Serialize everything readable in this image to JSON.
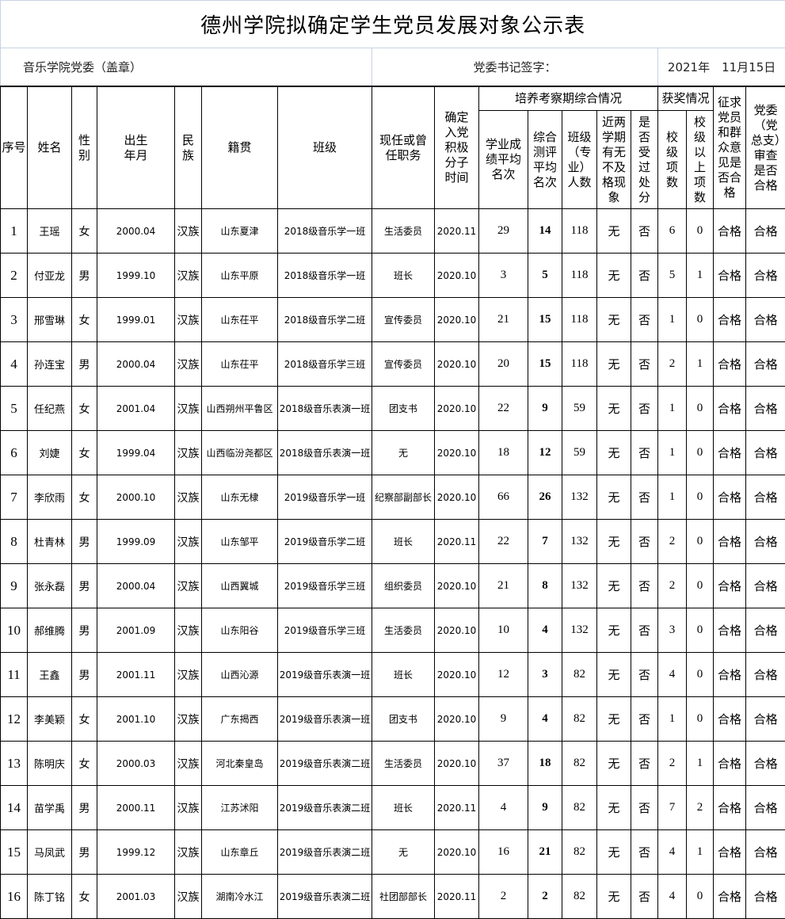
{
  "title": "德州学院拟确定学生党员发展对象公示表",
  "meta": {
    "committee": "音乐学院党委（盖章）",
    "signature_label": "党委书记签字：",
    "date": "2021年　11月15日"
  },
  "headers": {
    "seq": "序号",
    "name": "姓名",
    "gender": "性别",
    "birth": "出生年月",
    "ethnicity": "民族",
    "origin": "籍贯",
    "class": "班级",
    "position": "现任或曾任职务",
    "activist_date": "确定入党积极分子时间",
    "training_group": "培养考察期综合情况",
    "academic_rank": "学业成绩平均名次",
    "eval_rank": "综合测评平均名次",
    "class_size": "班级（专业）人数",
    "fail": "近两学期有无不及格现象",
    "punished": "是否受过处分",
    "award_group": "获奖情况",
    "school_awards": "校级项数",
    "above_awards": "校级以上项数",
    "opinion": "征求党员和群众意见是否合格",
    "review": "党委（党总支）审查是否合格"
  },
  "rows": [
    {
      "seq": "1",
      "name": "王瑶",
      "gender": "女",
      "birth": "2000.04",
      "eth": "汉族",
      "origin": "山东夏津",
      "class": "2018级音乐学一班",
      "position": "生活委员",
      "date": "2020.11",
      "acad": "29",
      "eval": "14",
      "size": "118",
      "fail": "无",
      "pun": "否",
      "school": "6",
      "above": "0",
      "op": "合格",
      "rev": "合格"
    },
    {
      "seq": "2",
      "name": "付亚龙",
      "gender": "男",
      "birth": "1999.10",
      "eth": "汉族",
      "origin": "山东平原",
      "class": "2018级音乐学一班",
      "position": "班长",
      "date": "2020.10",
      "acad": "3",
      "eval": "5",
      "size": "118",
      "fail": "无",
      "pun": "否",
      "school": "5",
      "above": "1",
      "op": "合格",
      "rev": "合格"
    },
    {
      "seq": "3",
      "name": "邢雪琳",
      "gender": "女",
      "birth": "1999.01",
      "eth": "汉族",
      "origin": "山东茌平",
      "class": "2018级音乐学二班",
      "position": "宣传委员",
      "date": "2020.10",
      "acad": "21",
      "eval": "15",
      "size": "118",
      "fail": "无",
      "pun": "否",
      "school": "1",
      "above": "0",
      "op": "合格",
      "rev": "合格"
    },
    {
      "seq": "4",
      "name": "孙连宝",
      "gender": "男",
      "birth": "2000.04",
      "eth": "汉族",
      "origin": "山东茌平",
      "class": "2018级音乐学三班",
      "position": "宣传委员",
      "date": "2020.10",
      "acad": "20",
      "eval": "15",
      "size": "118",
      "fail": "无",
      "pun": "否",
      "school": "2",
      "above": "1",
      "op": "合格",
      "rev": "合格"
    },
    {
      "seq": "5",
      "name": "任纪燕",
      "gender": "女",
      "birth": "2001.04",
      "eth": "汉族",
      "origin": "山西朔州平鲁区",
      "class": "2018级音乐表演一班",
      "position": "团支书",
      "date": "2020.10",
      "acad": "22",
      "eval": "9",
      "size": "59",
      "fail": "无",
      "pun": "否",
      "school": "1",
      "above": "0",
      "op": "合格",
      "rev": "合格"
    },
    {
      "seq": "6",
      "name": "刘婕",
      "gender": "女",
      "birth": "1999.04",
      "eth": "汉族",
      "origin": "山西临汾尧都区",
      "class": "2018级音乐表演一班",
      "position": "无",
      "date": "2020.10",
      "acad": "18",
      "eval": "12",
      "size": "59",
      "fail": "无",
      "pun": "否",
      "school": "1",
      "above": "0",
      "op": "合格",
      "rev": "合格"
    },
    {
      "seq": "7",
      "name": "李欣雨",
      "gender": "女",
      "birth": "2000.10",
      "eth": "汉族",
      "origin": "山东无棣",
      "class": "2019级音乐学一班",
      "position": "纪察部副部长",
      "date": "2020.10",
      "acad": "66",
      "eval": "26",
      "size": "132",
      "fail": "无",
      "pun": "否",
      "school": "1",
      "above": "0",
      "op": "合格",
      "rev": "合格"
    },
    {
      "seq": "8",
      "name": "杜青林",
      "gender": "男",
      "birth": "1999.09",
      "eth": "汉族",
      "origin": "山东邹平",
      "class": "2019级音乐学二班",
      "position": "班长",
      "date": "2020.11",
      "acad": "22",
      "eval": "7",
      "size": "132",
      "fail": "无",
      "pun": "否",
      "school": "2",
      "above": "0",
      "op": "合格",
      "rev": "合格"
    },
    {
      "seq": "9",
      "name": "张永磊",
      "gender": "男",
      "birth": "2000.04",
      "eth": "汉族",
      "origin": "山西翼城",
      "class": "2019级音乐学三班",
      "position": "组织委员",
      "date": "2020.10",
      "acad": "21",
      "eval": "8",
      "size": "132",
      "fail": "无",
      "pun": "否",
      "school": "2",
      "above": "0",
      "op": "合格",
      "rev": "合格"
    },
    {
      "seq": "10",
      "name": "郝维腾",
      "gender": "男",
      "birth": "2001.09",
      "eth": "汉族",
      "origin": "山东阳谷",
      "class": "2019级音乐学三班",
      "position": "生活委员",
      "date": "2020.10",
      "acad": "10",
      "eval": "4",
      "size": "132",
      "fail": "无",
      "pun": "否",
      "school": "3",
      "above": "0",
      "op": "合格",
      "rev": "合格"
    },
    {
      "seq": "11",
      "name": "王鑫",
      "gender": "男",
      "birth": "2001.11",
      "eth": "汉族",
      "origin": "山西沁源",
      "class": "2019级音乐表演一班",
      "position": "班长",
      "date": "2020.10",
      "acad": "12",
      "eval": "3",
      "size": "82",
      "fail": "无",
      "pun": "否",
      "school": "4",
      "above": "0",
      "op": "合格",
      "rev": "合格"
    },
    {
      "seq": "12",
      "name": "李美颖",
      "gender": "女",
      "birth": "2001.10",
      "eth": "汉族",
      "origin": "广东揭西",
      "class": "2019级音乐表演一班",
      "position": "团支书",
      "date": "2020.10",
      "acad": "9",
      "eval": "4",
      "size": "82",
      "fail": "无",
      "pun": "否",
      "school": "1",
      "above": "0",
      "op": "合格",
      "rev": "合格"
    },
    {
      "seq": "13",
      "name": "陈明庆",
      "gender": "女",
      "birth": "2000.03",
      "eth": "汉族",
      "origin": "河北秦皇岛",
      "class": "2019级音乐表演二班",
      "position": "生活委员",
      "date": "2020.10",
      "acad": "37",
      "eval": "18",
      "size": "82",
      "fail": "无",
      "pun": "否",
      "school": "2",
      "above": "1",
      "op": "合格",
      "rev": "合格"
    },
    {
      "seq": "14",
      "name": "苗学禹",
      "gender": "男",
      "birth": "2000.11",
      "eth": "汉族",
      "origin": "江苏沭阳",
      "class": "2019级音乐表演二班",
      "position": "班长",
      "date": "2020.11",
      "acad": "4",
      "eval": "9",
      "size": "82",
      "fail": "无",
      "pun": "否",
      "school": "7",
      "above": "2",
      "op": "合格",
      "rev": "合格"
    },
    {
      "seq": "15",
      "name": "马凤武",
      "gender": "男",
      "birth": "1999.12",
      "eth": "汉族",
      "origin": "山东章丘",
      "class": "2019级音乐表演二班",
      "position": "无",
      "date": "2020.10",
      "acad": "16",
      "eval": "21",
      "size": "82",
      "fail": "无",
      "pun": "否",
      "school": "4",
      "above": "1",
      "op": "合格",
      "rev": "合格"
    },
    {
      "seq": "16",
      "name": "陈丁铭",
      "gender": "女",
      "birth": "2001.03",
      "eth": "汉族",
      "origin": "湖南冷水江",
      "class": "2019级音乐表演二班",
      "position": "社团部部长",
      "date": "2020.11",
      "acad": "2",
      "eval": "2",
      "size": "82",
      "fail": "无",
      "pun": "否",
      "school": "4",
      "above": "0",
      "op": "合格",
      "rev": "合格"
    }
  ]
}
